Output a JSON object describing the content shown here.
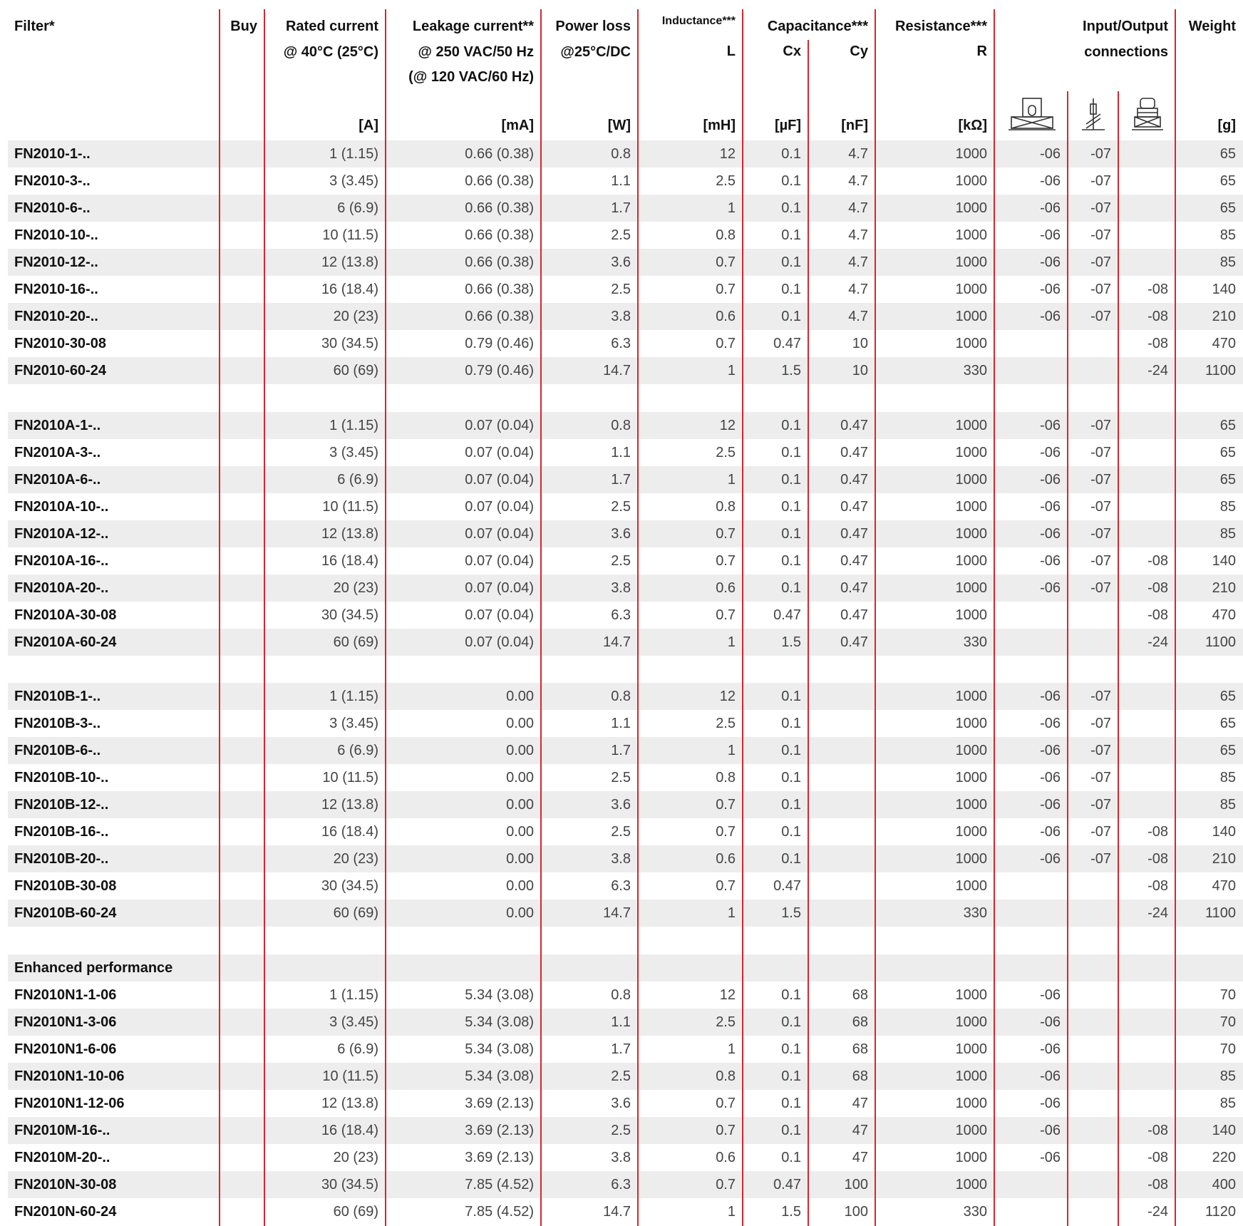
{
  "header": {
    "groups": [
      {
        "lines": [
          "Filter*"
        ]
      },
      {
        "lines": [
          "Buy"
        ]
      },
      {
        "lines": [
          "Rated current",
          "@ 40°C (25°C)"
        ]
      },
      {
        "lines": [
          "Leakage current**",
          "@ 250 VAC/50 Hz",
          "(@ 120 VAC/60 Hz)"
        ]
      },
      {
        "lines": [
          "Power loss",
          "@25°C/DC"
        ]
      },
      {
        "lines": [
          "Inductance***"
        ]
      },
      {
        "lines": [
          "Capacitance***"
        ]
      },
      {
        "lines": [
          "Resistance***"
        ]
      },
      {
        "lines": [
          "Input/Output",
          "connections"
        ]
      },
      {
        "lines": [
          "Weight"
        ]
      }
    ],
    "symbols": [
      "L",
      "Cx",
      "Cy",
      "R"
    ],
    "units": [
      "[A]",
      "[mA]",
      "[W]",
      "[mH]",
      "[µF]",
      "[nF]",
      "[kΩ]",
      "[g]"
    ]
  },
  "sections": [
    {
      "rows": [
        [
          "FN2010-1-..",
          "1 (1.15)",
          "0.66 (0.38)",
          "0.8",
          "12",
          "0.1",
          "4.7",
          "1000",
          "-06",
          "-07",
          null,
          "65"
        ],
        [
          "FN2010-3-..",
          "3 (3.45)",
          "0.66 (0.38)",
          "1.1",
          "2.5",
          "0.1",
          "4.7",
          "1000",
          "-06",
          "-07",
          null,
          "65"
        ],
        [
          "FN2010-6-..",
          "6 (6.9)",
          "0.66 (0.38)",
          "1.7",
          "1",
          "0.1",
          "4.7",
          "1000",
          "-06",
          "-07",
          null,
          "65"
        ],
        [
          "FN2010-10-..",
          "10 (11.5)",
          "0.66 (0.38)",
          "2.5",
          "0.8",
          "0.1",
          "4.7",
          "1000",
          "-06",
          "-07",
          null,
          "85"
        ],
        [
          "FN2010-12-..",
          "12 (13.8)",
          "0.66 (0.38)",
          "3.6",
          "0.7",
          "0.1",
          "4.7",
          "1000",
          "-06",
          "-07",
          null,
          "85"
        ],
        [
          "FN2010-16-..",
          "16 (18.4)",
          "0.66 (0.38)",
          "2.5",
          "0.7",
          "0.1",
          "4.7",
          "1000",
          "-06",
          "-07",
          "-08",
          "140"
        ],
        [
          "FN2010-20-..",
          "20 (23)",
          "0.66 (0.38)",
          "3.8",
          "0.6",
          "0.1",
          "4.7",
          "1000",
          "-06",
          "-07",
          "-08",
          "210"
        ],
        [
          "FN2010-30-08",
          "30 (34.5)",
          "0.79 (0.46)",
          "6.3",
          "0.7",
          "0.47",
          "10",
          "1000",
          null,
          null,
          "-08",
          "470"
        ],
        [
          "FN2010-60-24",
          "60 (69)",
          "0.79 (0.46)",
          "14.7",
          "1",
          "1.5",
          "10",
          "330",
          null,
          null,
          "-24",
          "1100"
        ]
      ]
    },
    {
      "rows": [
        [
          "FN2010A-1-..",
          "1 (1.15)",
          "0.07 (0.04)",
          "0.8",
          "12",
          "0.1",
          "0.47",
          "1000",
          "-06",
          "-07",
          null,
          "65"
        ],
        [
          "FN2010A-3-..",
          "3 (3.45)",
          "0.07 (0.04)",
          "1.1",
          "2.5",
          "0.1",
          "0.47",
          "1000",
          "-06",
          "-07",
          null,
          "65"
        ],
        [
          "FN2010A-6-..",
          "6 (6.9)",
          "0.07 (0.04)",
          "1.7",
          "1",
          "0.1",
          "0.47",
          "1000",
          "-06",
          "-07",
          null,
          "65"
        ],
        [
          "FN2010A-10-..",
          "10 (11.5)",
          "0.07 (0.04)",
          "2.5",
          "0.8",
          "0.1",
          "0.47",
          "1000",
          "-06",
          "-07",
          null,
          "85"
        ],
        [
          "FN2010A-12-..",
          "12 (13.8)",
          "0.07 (0.04)",
          "3.6",
          "0.7",
          "0.1",
          "0.47",
          "1000",
          "-06",
          "-07",
          null,
          "85"
        ],
        [
          "FN2010A-16-..",
          "16 (18.4)",
          "0.07 (0.04)",
          "2.5",
          "0.7",
          "0.1",
          "0.47",
          "1000",
          "-06",
          "-07",
          "-08",
          "140"
        ],
        [
          "FN2010A-20-..",
          "20 (23)",
          "0.07 (0.04)",
          "3.8",
          "0.6",
          "0.1",
          "0.47",
          "1000",
          "-06",
          "-07",
          "-08",
          "210"
        ],
        [
          "FN2010A-30-08",
          "30 (34.5)",
          "0.07 (0.04)",
          "6.3",
          "0.7",
          "0.47",
          "0.47",
          "1000",
          null,
          null,
          "-08",
          "470"
        ],
        [
          "FN2010A-60-24",
          "60 (69)",
          "0.07 (0.04)",
          "14.7",
          "1",
          "1.5",
          "0.47",
          "330",
          null,
          null,
          "-24",
          "1100"
        ]
      ]
    },
    {
      "rows": [
        [
          "FN2010B-1-..",
          "1 (1.15)",
          "0.00",
          "0.8",
          "12",
          "0.1",
          null,
          "1000",
          "-06",
          "-07",
          null,
          "65"
        ],
        [
          "FN2010B-3-..",
          "3 (3.45)",
          "0.00",
          "1.1",
          "2.5",
          "0.1",
          null,
          "1000",
          "-06",
          "-07",
          null,
          "65"
        ],
        [
          "FN2010B-6-..",
          "6 (6.9)",
          "0.00",
          "1.7",
          "1",
          "0.1",
          null,
          "1000",
          "-06",
          "-07",
          null,
          "65"
        ],
        [
          "FN2010B-10-..",
          "10 (11.5)",
          "0.00",
          "2.5",
          "0.8",
          "0.1",
          null,
          "1000",
          "-06",
          "-07",
          null,
          "85"
        ],
        [
          "FN2010B-12-..",
          "12 (13.8)",
          "0.00",
          "3.6",
          "0.7",
          "0.1",
          null,
          "1000",
          "-06",
          "-07",
          null,
          "85"
        ],
        [
          "FN2010B-16-..",
          "16 (18.4)",
          "0.00",
          "2.5",
          "0.7",
          "0.1",
          null,
          "1000",
          "-06",
          "-07",
          "-08",
          "140"
        ],
        [
          "FN2010B-20-..",
          "20 (23)",
          "0.00",
          "3.8",
          "0.6",
          "0.1",
          null,
          "1000",
          "-06",
          "-07",
          "-08",
          "210"
        ],
        [
          "FN2010B-30-08",
          "30 (34.5)",
          "0.00",
          "6.3",
          "0.7",
          "0.47",
          null,
          "1000",
          null,
          null,
          "-08",
          "470"
        ],
        [
          "FN2010B-60-24",
          "60 (69)",
          "0.00",
          "14.7",
          "1",
          "1.5",
          null,
          "330",
          null,
          null,
          "-24",
          "1100"
        ]
      ]
    },
    {
      "title": "Enhanced performance",
      "rows": [
        [
          "FN2010N1-1-06",
          "1 (1.15)",
          "5.34 (3.08)",
          "0.8",
          "12",
          "0.1",
          "68",
          "1000",
          "-06",
          null,
          null,
          "70"
        ],
        [
          "FN2010N1-3-06",
          "3 (3.45)",
          "5.34 (3.08)",
          "1.1",
          "2.5",
          "0.1",
          "68",
          "1000",
          "-06",
          null,
          null,
          "70"
        ],
        [
          "FN2010N1-6-06",
          "6 (6.9)",
          "5.34 (3.08)",
          "1.7",
          "1",
          "0.1",
          "68",
          "1000",
          "-06",
          null,
          null,
          "70"
        ],
        [
          "FN2010N1-10-06",
          "10 (11.5)",
          "5.34 (3.08)",
          "2.5",
          "0.8",
          "0.1",
          "68",
          "1000",
          "-06",
          null,
          null,
          "85"
        ],
        [
          "FN2010N1-12-06",
          "12 (13.8)",
          "3.69 (2.13)",
          "3.6",
          "0.7",
          "0.1",
          "47",
          "1000",
          "-06",
          null,
          null,
          "85"
        ],
        [
          "FN2010M-16-..",
          "16 (18.4)",
          "3.69 (2.13)",
          "2.5",
          "0.7",
          "0.1",
          "47",
          "1000",
          "-06",
          null,
          "-08",
          "140"
        ],
        [
          "FN2010M-20-..",
          "20 (23)",
          "3.69 (2.13)",
          "3.8",
          "0.6",
          "0.1",
          "47",
          "1000",
          "-06",
          null,
          "-08",
          "220"
        ],
        [
          "FN2010N-30-08",
          "30 (34.5)",
          "7.85 (4.52)",
          "6.3",
          "0.7",
          "0.47",
          "100",
          "1000",
          null,
          null,
          "-08",
          "400"
        ],
        [
          "FN2010N-60-24",
          "60 (69)",
          "7.85 (4.52)",
          "14.7",
          "1",
          "1.5",
          "100",
          "330",
          null,
          null,
          "-24",
          "1120"
        ]
      ]
    }
  ]
}
